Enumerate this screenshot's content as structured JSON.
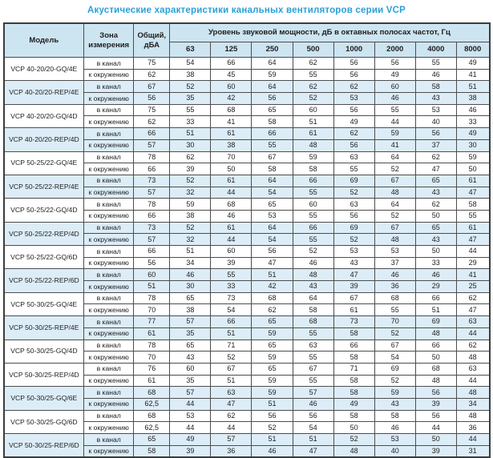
{
  "title": "Акустические характеристики канальных вентиляторов  серии VCP",
  "colors": {
    "title_accent": "#2aa0d6",
    "header_bg": "#cde4f1",
    "highlight_row_bg": "#dcedf8",
    "border": "#4d4d4d"
  },
  "table": {
    "headers": {
      "model": "Модель",
      "zone": "Зона\nизмерения",
      "total": "Общий,\nдБА",
      "band_header": "Уровень звуковой мощности, дБ в октавных полосах частот, Гц",
      "frequencies": [
        "63",
        "125",
        "250",
        "500",
        "1000",
        "2000",
        "4000",
        "8000"
      ]
    },
    "zone_labels": {
      "duct": "в канал",
      "env": "к окружению"
    },
    "rows": [
      {
        "model": "VCP 40-20/20-GQ/4E",
        "highlight": false,
        "duct": {
          "total": "75",
          "bands": [
            54,
            66,
            64,
            62,
            56,
            56,
            55,
            49
          ]
        },
        "env": {
          "total": "62",
          "bands": [
            38,
            45,
            59,
            55,
            56,
            49,
            46,
            41
          ]
        }
      },
      {
        "model": "VCP 40-20/20-REP/4E",
        "highlight": true,
        "duct": {
          "total": "67",
          "bands": [
            52,
            60,
            64,
            62,
            62,
            60,
            58,
            51
          ]
        },
        "env": {
          "total": "56",
          "bands": [
            35,
            42,
            56,
            52,
            53,
            46,
            43,
            38
          ]
        }
      },
      {
        "model": "VCP 40-20/20-GQ/4D",
        "highlight": false,
        "duct": {
          "total": "75",
          "bands": [
            55,
            68,
            65,
            60,
            56,
            55,
            53,
            46
          ]
        },
        "env": {
          "total": "62",
          "bands": [
            33,
            41,
            58,
            51,
            49,
            44,
            40,
            33
          ]
        }
      },
      {
        "model": "VCP 40-20/20-REP/4D",
        "highlight": true,
        "duct": {
          "total": "66",
          "bands": [
            51,
            61,
            66,
            61,
            62,
            59,
            56,
            49
          ]
        },
        "env": {
          "total": "57",
          "bands": [
            30,
            38,
            55,
            48,
            56,
            41,
            37,
            30
          ]
        }
      },
      {
        "model": "VCP 50-25/22-GQ/4E",
        "highlight": false,
        "duct": {
          "total": "78",
          "bands": [
            62,
            70,
            67,
            59,
            63,
            64,
            62,
            59
          ]
        },
        "env": {
          "total": "66",
          "bands": [
            39,
            50,
            58,
            58,
            55,
            52,
            47,
            50
          ]
        }
      },
      {
        "model": "VCP 50-25/22-REP/4E",
        "highlight": true,
        "duct": {
          "total": "73",
          "bands": [
            52,
            61,
            64,
            66,
            69,
            67,
            65,
            61
          ]
        },
        "env": {
          "total": "57",
          "bands": [
            32,
            44,
            54,
            55,
            52,
            48,
            43,
            47
          ]
        }
      },
      {
        "model": "VCP 50-25/22-GQ/4D",
        "highlight": false,
        "duct": {
          "total": "78",
          "bands": [
            59,
            68,
            65,
            60,
            63,
            64,
            62,
            58
          ]
        },
        "env": {
          "total": "66",
          "bands": [
            38,
            46,
            53,
            55,
            56,
            52,
            50,
            55
          ]
        }
      },
      {
        "model": "VCP 50-25/22-REP/4D",
        "highlight": true,
        "duct": {
          "total": "73",
          "bands": [
            52,
            61,
            64,
            66,
            69,
            67,
            65,
            61
          ]
        },
        "env": {
          "total": "57",
          "bands": [
            32,
            44,
            54,
            55,
            52,
            48,
            43,
            47
          ]
        }
      },
      {
        "model": "VCP 50-25/22-GQ/6D",
        "highlight": false,
        "duct": {
          "total": "66",
          "bands": [
            51,
            60,
            56,
            52,
            53,
            53,
            50,
            44
          ]
        },
        "env": {
          "total": "56",
          "bands": [
            34,
            39,
            47,
            46,
            43,
            37,
            33,
            29
          ]
        }
      },
      {
        "model": "VCP 50-25/22-REP/6D",
        "highlight": true,
        "duct": {
          "total": "60",
          "bands": [
            46,
            55,
            51,
            48,
            47,
            46,
            46,
            41
          ]
        },
        "env": {
          "total": "51",
          "bands": [
            30,
            33,
            42,
            43,
            39,
            36,
            29,
            25
          ]
        }
      },
      {
        "model": "VCP 50-30/25-GQ/4E",
        "highlight": false,
        "duct": {
          "total": "78",
          "bands": [
            65,
            73,
            68,
            64,
            67,
            68,
            66,
            62
          ]
        },
        "env": {
          "total": "70",
          "bands": [
            38,
            54,
            62,
            58,
            61,
            55,
            51,
            47
          ]
        }
      },
      {
        "model": "VCP 50-30/25-REP/4E",
        "highlight": true,
        "duct": {
          "total": "77",
          "bands": [
            57,
            66,
            65,
            68,
            73,
            70,
            69,
            63
          ]
        },
        "env": {
          "total": "61",
          "bands": [
            35,
            51,
            59,
            55,
            58,
            52,
            48,
            44
          ]
        }
      },
      {
        "model": "VCP 50-30/25-GQ/4D",
        "highlight": false,
        "duct": {
          "total": "78",
          "bands": [
            65,
            71,
            65,
            63,
            66,
            67,
            66,
            62
          ]
        },
        "env": {
          "total": "70",
          "bands": [
            43,
            52,
            59,
            55,
            58,
            54,
            50,
            48
          ]
        }
      },
      {
        "model": "VCP 50-30/25-REP/4D",
        "highlight": false,
        "duct": {
          "total": "76",
          "bands": [
            60,
            67,
            65,
            67,
            71,
            69,
            68,
            63
          ]
        },
        "env": {
          "total": "61",
          "bands": [
            35,
            51,
            59,
            55,
            58,
            52,
            48,
            44
          ]
        }
      },
      {
        "model": "VCP 50-30/25-GQ/6E",
        "highlight": true,
        "duct": {
          "total": "68",
          "bands": [
            57,
            63,
            59,
            57,
            58,
            59,
            56,
            48
          ]
        },
        "env": {
          "total": "62,5",
          "bands": [
            44,
            47,
            51,
            46,
            49,
            43,
            39,
            34
          ]
        }
      },
      {
        "model": "VCP 50-30/25-GQ/6D",
        "highlight": false,
        "duct": {
          "total": "68",
          "bands": [
            53,
            62,
            56,
            56,
            58,
            58,
            56,
            48
          ]
        },
        "env": {
          "total": "62,5",
          "bands": [
            44,
            44,
            52,
            54,
            50,
            46,
            44,
            36
          ]
        }
      },
      {
        "model": "VCP 50-30/25-REP/6D",
        "highlight": true,
        "duct": {
          "total": "65",
          "bands": [
            49,
            57,
            51,
            51,
            52,
            53,
            50,
            44
          ]
        },
        "env": {
          "total": "58",
          "bands": [
            39,
            36,
            46,
            47,
            48,
            40,
            39,
            31
          ]
        }
      }
    ]
  }
}
